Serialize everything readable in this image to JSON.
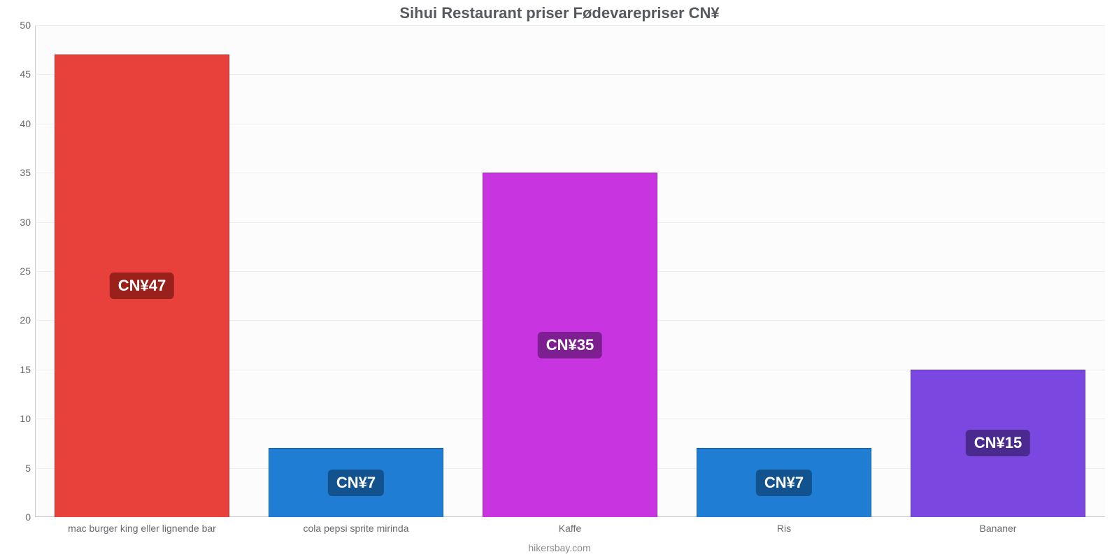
{
  "chart": {
    "type": "bar",
    "title": "Sihui Restaurant priser Fødevarepriser CN¥",
    "title_color": "#555a60",
    "title_fontsize": 22,
    "footer": "hikersbay.com",
    "footer_color": "#888b8e",
    "background_color": "#fcfcfc",
    "grid_color": "#eceeef",
    "axis_color": "#c8cacc",
    "label_color": "#66696c",
    "label_fontsize": 14,
    "value_fontsize": 22,
    "ylim": [
      0,
      50
    ],
    "ytick_step": 5,
    "bar_width_ratio": 0.82,
    "categories": [
      "mac burger king eller lignende bar",
      "cola pepsi sprite mirinda",
      "Kaffe",
      "Ris",
      "Bananer"
    ],
    "values": [
      47,
      7,
      35,
      7,
      15
    ],
    "value_labels": [
      "CN¥47",
      "CN¥7",
      "CN¥35",
      "CN¥7",
      "CN¥15"
    ],
    "bar_colors": [
      "#e8413c",
      "#1f7ed3",
      "#c734e0",
      "#1f7ed3",
      "#7a48e0"
    ],
    "badge_colors": [
      "#9a201c",
      "#12528f",
      "#7d1f90",
      "#12528f",
      "#4a2a8f"
    ],
    "badge_text_color": "#ffffff",
    "bar_border_color": "rgba(0,0,0,0.25)"
  }
}
